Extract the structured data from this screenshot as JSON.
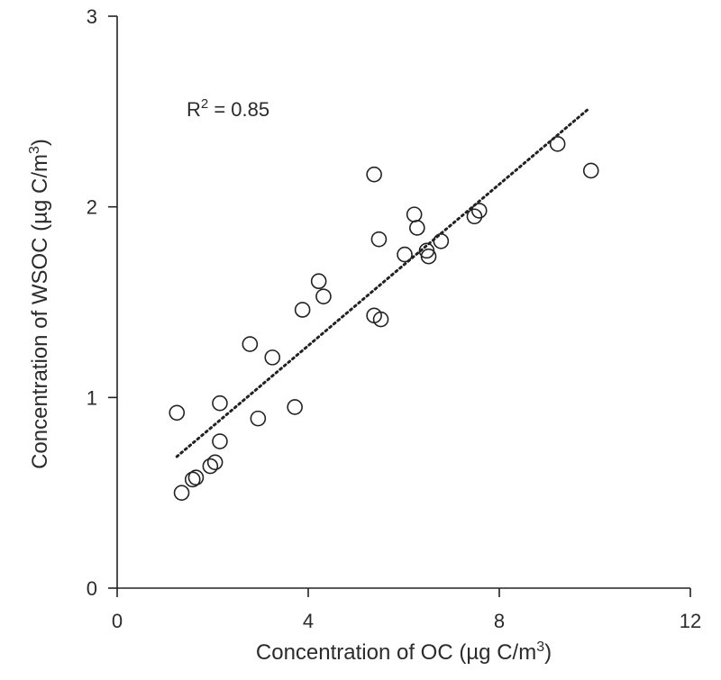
{
  "chart_data": {
    "type": "scatter",
    "title": "",
    "xlabel": "Concentration of OC (µg C/m",
    "xlabel_sup": "3",
    "xlabel_end": ")",
    "ylabel": "Concentration of WSOC (µg C/m",
    "ylabel_sup": "3",
    "ylabel_end": ")",
    "xlim": [
      0,
      12
    ],
    "ylim": [
      0,
      3
    ],
    "xticks": [
      0,
      4,
      8,
      12
    ],
    "yticks": [
      0,
      1,
      2,
      3
    ],
    "grid": false,
    "annotation": {
      "prefix": "R",
      "sup": "2",
      "suffix": " = 0.85"
    },
    "trendline": {
      "style": "dotted",
      "x": [
        1.25,
        9.85
      ],
      "y": [
        0.69,
        2.51
      ]
    },
    "points": [
      {
        "x": 1.25,
        "y": 0.92
      },
      {
        "x": 1.35,
        "y": 0.5
      },
      {
        "x": 1.58,
        "y": 0.57
      },
      {
        "x": 1.65,
        "y": 0.58
      },
      {
        "x": 1.95,
        "y": 0.64
      },
      {
        "x": 2.05,
        "y": 0.66
      },
      {
        "x": 2.15,
        "y": 0.77
      },
      {
        "x": 2.15,
        "y": 0.97
      },
      {
        "x": 2.78,
        "y": 1.28
      },
      {
        "x": 2.95,
        "y": 0.89
      },
      {
        "x": 3.25,
        "y": 1.21
      },
      {
        "x": 3.72,
        "y": 0.95
      },
      {
        "x": 3.88,
        "y": 1.46
      },
      {
        "x": 4.22,
        "y": 1.61
      },
      {
        "x": 4.32,
        "y": 1.53
      },
      {
        "x": 5.38,
        "y": 2.17
      },
      {
        "x": 5.38,
        "y": 1.43
      },
      {
        "x": 5.48,
        "y": 1.83
      },
      {
        "x": 5.52,
        "y": 1.41
      },
      {
        "x": 6.02,
        "y": 1.75
      },
      {
        "x": 6.22,
        "y": 1.96
      },
      {
        "x": 6.28,
        "y": 1.89
      },
      {
        "x": 6.48,
        "y": 1.77
      },
      {
        "x": 6.52,
        "y": 1.74
      },
      {
        "x": 6.78,
        "y": 1.82
      },
      {
        "x": 7.48,
        "y": 1.95
      },
      {
        "x": 7.58,
        "y": 1.98
      },
      {
        "x": 9.22,
        "y": 2.33
      },
      {
        "x": 9.92,
        "y": 2.19
      }
    ]
  }
}
